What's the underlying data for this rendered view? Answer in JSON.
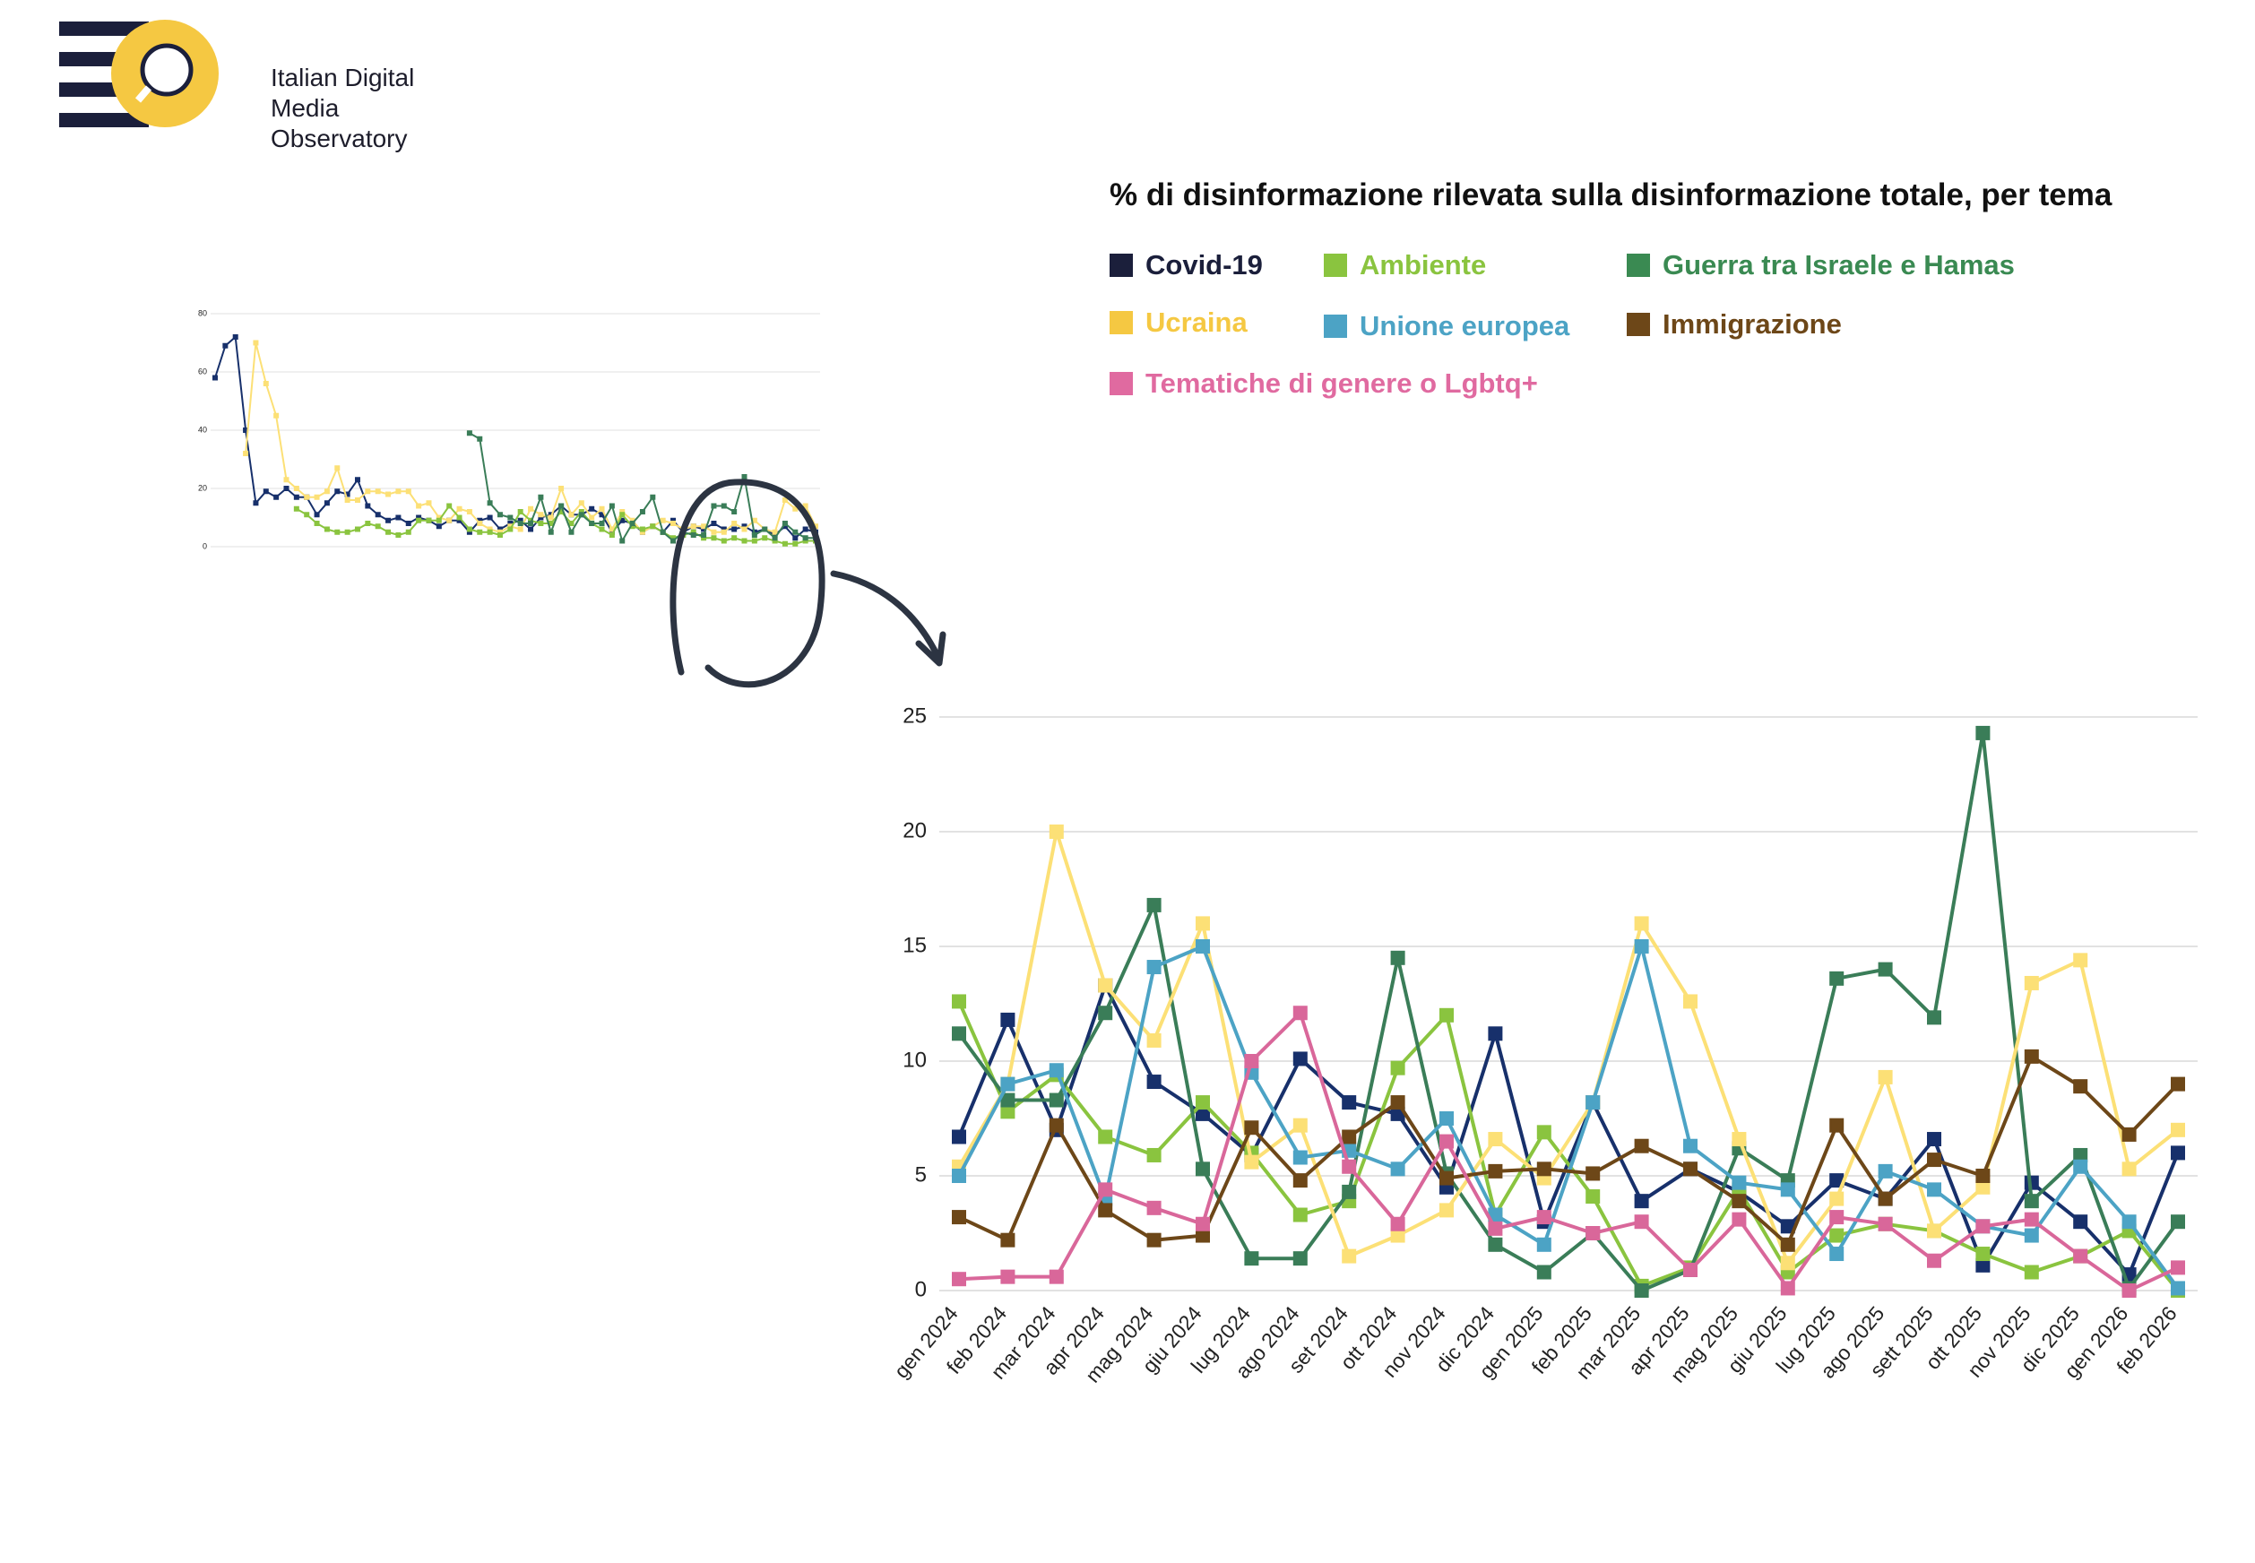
{
  "logo": {
    "line1": "Italian Digital",
    "line2": "Media Observatory",
    "colors": {
      "bars": "#1b1f3b",
      "circle": "#f5c842"
    }
  },
  "chart_data": [
    {
      "type": "line",
      "title": "% di disinformazione rilevata sulla disinformazione totale, per tema",
      "xlabel": "",
      "ylabel": "",
      "ylim": [
        0,
        25
      ],
      "yticks": [
        0,
        5,
        10,
        15,
        20,
        25
      ],
      "grid": true,
      "legend_position": "top",
      "categories": [
        "gen 2024",
        "feb 2024",
        "mar 2024",
        "apr 2024",
        "mag 2024",
        "giu 2024",
        "lug 2024",
        "ago 2024",
        "set 2024",
        "ott 2024",
        "nov 2024",
        "dic 2024",
        "gen 2025",
        "feb 2025",
        "mar 2025",
        "apr 2025",
        "mag 2025",
        "giu 2025",
        "lug 2025",
        "ago 2025",
        "sett 2025",
        "ott 2025",
        "nov 2025",
        "dic 2025",
        "gen 2026",
        "feb 2026"
      ],
      "series": [
        {
          "name": "Covid-19",
          "color": "#17306b",
          "legend_color": "#1b1f3b",
          "values": [
            6.7,
            11.8,
            7.0,
            13.3,
            9.1,
            7.7,
            5.9,
            10.1,
            8.2,
            7.7,
            4.5,
            11.2,
            3.0,
            8.2,
            3.9,
            5.3,
            4.3,
            2.8,
            4.8,
            4.0,
            6.6,
            1.1,
            4.7,
            3.0,
            0.7,
            6.0
          ]
        },
        {
          "name": "Ambiente",
          "color": "#8ac43f",
          "legend_color": "#8ac43f",
          "values": [
            12.6,
            7.8,
            9.4,
            6.7,
            5.9,
            8.2,
            6.0,
            3.3,
            3.9,
            9.7,
            12.0,
            3.3,
            6.9,
            4.1,
            0.2,
            1.0,
            4.4,
            0.8,
            2.4,
            2.9,
            2.6,
            1.6,
            0.8,
            1.5,
            2.6,
            0.0
          ]
        },
        {
          "name": "Guerra tra Israele e Hamas",
          "color": "#3a7d58",
          "legend_color": "#3a8a52",
          "values": [
            11.2,
            8.3,
            8.3,
            12.1,
            16.8,
            5.3,
            1.4,
            1.4,
            4.3,
            14.5,
            5.1,
            2.0,
            0.8,
            2.5,
            0.0,
            0.9,
            6.2,
            4.8,
            13.6,
            14.0,
            11.9,
            24.3,
            3.9,
            5.9,
            0.1,
            3.0
          ]
        },
        {
          "name": "Ucraina",
          "color": "#fce076",
          "legend_color": "#f5c842",
          "values": [
            5.4,
            9.0,
            20.0,
            13.3,
            10.9,
            16.0,
            5.6,
            7.2,
            1.5,
            2.4,
            3.5,
            6.6,
            4.9,
            8.2,
            16.0,
            12.6,
            6.6,
            1.2,
            4.0,
            9.3,
            2.6,
            4.5,
            13.4,
            14.4,
            5.3,
            7.0
          ]
        },
        {
          "name": "Unione europea",
          "color": "#4ca3c5",
          "legend_color": "#4ca3c5",
          "values": [
            5.0,
            9.0,
            9.6,
            4.0,
            14.1,
            15.0,
            9.5,
            5.8,
            6.1,
            5.3,
            7.5,
            3.3,
            2.0,
            8.2,
            15.0,
            6.3,
            4.7,
            4.4,
            1.6,
            5.2,
            4.4,
            2.8,
            2.4,
            5.4,
            3.0,
            0.1
          ]
        },
        {
          "name": "Immigrazione",
          "color": "#6d4718",
          "legend_color": "#6d4718",
          "values": [
            3.2,
            2.2,
            7.2,
            3.5,
            2.2,
            2.4,
            7.1,
            4.8,
            6.7,
            8.2,
            4.9,
            5.2,
            5.3,
            5.1,
            6.3,
            5.3,
            3.9,
            2.0,
            7.2,
            4.0,
            5.7,
            5.0,
            10.2,
            8.9,
            6.8,
            9.0
          ]
        },
        {
          "name": "Tematiche di genere o Lgbtq+",
          "color": "#d9679a",
          "legend_color": "#e06aa0",
          "values": [
            0.5,
            0.6,
            0.6,
            4.4,
            3.6,
            2.9,
            10.0,
            12.1,
            5.4,
            2.9,
            6.5,
            2.7,
            3.2,
            2.5,
            3.0,
            0.9,
            3.1,
            0.1,
            3.2,
            2.9,
            1.3,
            2.8,
            3.1,
            1.5,
            0.0,
            1.0
          ]
        }
      ]
    },
    {
      "type": "line",
      "title": "",
      "ylim": [
        0,
        80
      ],
      "yticks": [
        0,
        20,
        40,
        60,
        80
      ],
      "grid": true,
      "series": [
        {
          "name": "Covid-19",
          "color": "#17306b",
          "values": [
            58,
            69,
            72,
            40,
            15,
            19,
            17,
            20,
            17,
            17,
            11,
            15,
            19,
            18,
            23,
            14,
            11,
            9,
            10,
            8,
            10,
            9,
            7,
            9,
            9,
            5,
            9,
            10,
            6,
            8,
            9,
            6,
            10,
            11,
            14,
            11,
            11,
            13,
            11,
            5,
            9,
            8,
            5,
            7,
            5,
            9,
            5,
            7,
            6,
            8,
            6,
            6,
            7,
            5,
            6,
            4,
            7,
            3,
            6,
            5
          ]
        },
        {
          "name": "Ucraina",
          "color": "#fce076",
          "values": [
            null,
            null,
            null,
            32,
            70,
            56,
            45,
            23,
            20,
            17,
            17,
            19,
            27,
            16,
            16,
            19,
            19,
            18,
            19,
            19,
            14,
            15,
            10,
            9,
            13,
            12,
            8,
            6,
            5,
            7,
            6,
            13,
            11,
            10,
            20,
            11,
            15,
            10,
            13,
            6,
            12,
            9,
            5,
            7,
            9,
            8,
            6,
            7,
            7,
            5,
            5,
            8,
            6,
            9,
            6,
            5,
            16,
            13,
            14,
            7
          ]
        },
        {
          "name": "Ambiente",
          "color": "#8ac43f",
          "values": [
            null,
            null,
            null,
            null,
            null,
            null,
            null,
            null,
            13,
            11,
            8,
            6,
            5,
            5,
            6,
            8,
            7,
            5,
            4,
            5,
            9,
            9,
            9,
            14,
            10,
            6,
            5,
            5,
            4,
            6,
            12,
            9,
            8,
            8,
            12,
            8,
            12,
            8,
            6,
            4,
            11,
            7,
            6,
            7,
            5,
            3,
            4,
            5,
            3,
            3,
            2,
            3,
            2,
            2,
            3,
            2,
            1,
            1,
            2,
            2
          ]
        },
        {
          "name": "Guerra tra Israele e Hamas",
          "color": "#3a7d58",
          "values": [
            null,
            null,
            null,
            null,
            null,
            null,
            null,
            null,
            null,
            null,
            null,
            null,
            null,
            null,
            null,
            null,
            null,
            null,
            null,
            null,
            null,
            null,
            null,
            null,
            null,
            39,
            37,
            15,
            11,
            10,
            8,
            8,
            17,
            5,
            14,
            5,
            11,
            8,
            8,
            14,
            2,
            8,
            12,
            17,
            5,
            2,
            5,
            4,
            4,
            14,
            14,
            12,
            24,
            4,
            6,
            3,
            8,
            5,
            3,
            3
          ]
        }
      ]
    }
  ]
}
